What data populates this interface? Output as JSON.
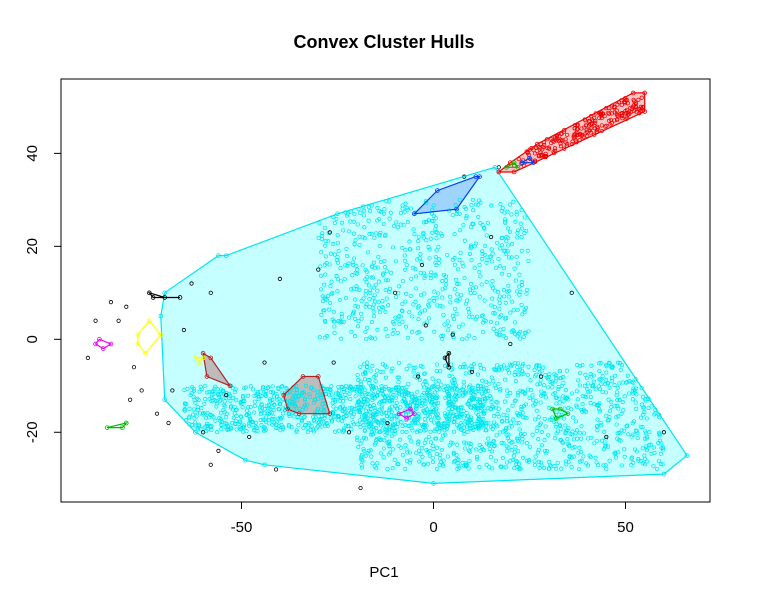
{
  "chart_data": {
    "type": "scatter",
    "title": "Convex Cluster Hulls",
    "xlabel": "PC1",
    "ylabel": "",
    "xlim": [
      -97,
      72
    ],
    "ylim": [
      -35,
      56
    ],
    "xticks": [
      -50,
      0,
      50
    ],
    "yticks": [
      -20,
      0,
      20,
      40
    ],
    "grid": false,
    "legend": "none",
    "colors": {
      "cyan": "#00e5ee",
      "cyan_fill": "#c6ffff",
      "red": "#ee0000",
      "red_fill": "#f4c6c6",
      "blue": "#0040ee",
      "blue_fill": "#9fd4ff",
      "yellow": "#ffff00",
      "magenta": "#ee00ee",
      "green": "#00bb00",
      "brown": "#b22222",
      "gray_fill": "#bcbcbc",
      "black": "#000000"
    },
    "hulls": [
      {
        "color": "cyan",
        "fill": "cyan_fill",
        "vertices": [
          [
            -70,
            -13
          ],
          [
            -71,
            5
          ],
          [
            -70,
            10
          ],
          [
            -56,
            18
          ],
          [
            -54,
            18
          ],
          [
            -25,
            27
          ],
          [
            16,
            37
          ],
          [
            66,
            -25
          ],
          [
            60,
            -29
          ],
          [
            0,
            -31
          ],
          [
            -44,
            -27
          ],
          [
            -49,
            -26
          ],
          [
            -62,
            -20
          ]
        ]
      },
      {
        "color": "red",
        "fill": "red_fill",
        "vertices": [
          [
            17,
            36
          ],
          [
            21,
            36
          ],
          [
            55,
            49
          ],
          [
            55,
            53
          ],
          [
            52,
            53
          ],
          [
            27,
            42
          ],
          [
            20,
            38
          ]
        ]
      },
      {
        "color": "blue",
        "fill": "blue_fill",
        "vertices": [
          [
            -5,
            27
          ],
          [
            1,
            32
          ],
          [
            11,
            35
          ],
          [
            12,
            35
          ],
          [
            6,
            28
          ]
        ]
      },
      {
        "color": "brown",
        "fill": "gray_fill",
        "vertices": [
          [
            -38,
            -15
          ],
          [
            -39,
            -12
          ],
          [
            -34,
            -8
          ],
          [
            -30,
            -8
          ],
          [
            -27,
            -16
          ],
          [
            -35,
            -16
          ]
        ]
      },
      {
        "color": "brown",
        "fill": "gray_fill",
        "vertices": [
          [
            -60,
            -3
          ],
          [
            -58,
            -4
          ],
          [
            -53,
            -10
          ],
          [
            -59,
            -8
          ]
        ]
      },
      {
        "color": "yellow",
        "fill": "none",
        "vertices": [
          [
            -77,
            1
          ],
          [
            -74,
            4
          ],
          [
            -71,
            1
          ],
          [
            -75,
            -3
          ],
          [
            -77,
            -1
          ]
        ]
      },
      {
        "color": "magenta",
        "fill": "none",
        "vertices": [
          [
            -88,
            -1
          ],
          [
            -86,
            -2
          ],
          [
            -84,
            -1
          ],
          [
            -87,
            0
          ]
        ]
      },
      {
        "color": "magenta",
        "fill": "none",
        "vertices": [
          [
            -9,
            -16
          ],
          [
            -6,
            -15
          ],
          [
            -5,
            -16
          ],
          [
            -7,
            -17
          ]
        ]
      },
      {
        "color": "green",
        "fill": "none",
        "vertices": [
          [
            -85,
            -19
          ],
          [
            -81,
            -19
          ],
          [
            -80,
            -18
          ]
        ]
      },
      {
        "color": "green",
        "fill": "none",
        "vertices": [
          [
            31,
            -15
          ],
          [
            33,
            -15
          ],
          [
            35,
            -16
          ],
          [
            32,
            -17
          ]
        ]
      },
      {
        "color": "green",
        "fill": "none",
        "vertices": [
          [
            19,
            37
          ],
          [
            21,
            38
          ],
          [
            22,
            37
          ]
        ]
      },
      {
        "color": "black",
        "fill": "none",
        "vertices": [
          [
            -74,
            10
          ],
          [
            -70,
            9
          ],
          [
            -66,
            9
          ],
          [
            -73,
            9
          ]
        ]
      },
      {
        "color": "black",
        "fill": "none",
        "vertices": [
          [
            3,
            -4
          ],
          [
            4,
            -3
          ],
          [
            4,
            -6
          ]
        ]
      },
      {
        "color": "blue",
        "fill": "none",
        "vertices": [
          [
            23,
            38
          ],
          [
            25,
            39
          ],
          [
            26,
            38
          ]
        ]
      },
      {
        "color": "yellow",
        "fill": "none",
        "vertices": [
          [
            -62,
            -4
          ],
          [
            -60,
            -4
          ],
          [
            -61,
            -5
          ]
        ]
      }
    ],
    "point_clouds": [
      {
        "color": "cyan",
        "count": 2600,
        "regions": [
          [
            -65,
            15,
            -20,
            -10,
            0.35
          ],
          [
            -30,
            25,
            0,
            30,
            0.25
          ],
          [
            -20,
            60,
            -28,
            -5,
            0.4
          ]
        ]
      },
      {
        "color": "red",
        "count": 220,
        "regions": [
          [
            20,
            55,
            37,
            52,
            1.0
          ]
        ]
      }
    ],
    "outliers": [
      [
        -90,
        -4
      ],
      [
        -88,
        4
      ],
      [
        -84,
        8
      ],
      [
        -80,
        7
      ],
      [
        -82,
        4
      ],
      [
        -78,
        -6
      ],
      [
        -76,
        -11
      ],
      [
        -79,
        -13
      ],
      [
        -69,
        -18
      ],
      [
        -60,
        -20
      ],
      [
        -58,
        -27
      ],
      [
        -56,
        -24
      ],
      [
        -48,
        -21
      ],
      [
        -41,
        -28
      ],
      [
        -19,
        -32
      ],
      [
        -4,
        -8
      ],
      [
        -2,
        3
      ],
      [
        5,
        1
      ],
      [
        15,
        22
      ],
      [
        20,
        -1
      ],
      [
        -3,
        16
      ],
      [
        -30,
        15
      ],
      [
        -27,
        23
      ],
      [
        -40,
        13
      ],
      [
        -10,
        10
      ],
      [
        -58,
        10
      ],
      [
        36,
        10
      ],
      [
        45,
        -21
      ],
      [
        60,
        -20
      ],
      [
        -68,
        -11
      ],
      [
        -72,
        -16
      ],
      [
        -54,
        -12
      ],
      [
        -65,
        2
      ],
      [
        -63,
        12
      ],
      [
        8,
        35
      ],
      [
        17,
        37
      ],
      [
        -44,
        -5
      ],
      [
        -26,
        -5
      ],
      [
        10,
        -7
      ],
      [
        -22,
        -20
      ],
      [
        -12,
        -18
      ],
      [
        28,
        -8
      ]
    ]
  }
}
